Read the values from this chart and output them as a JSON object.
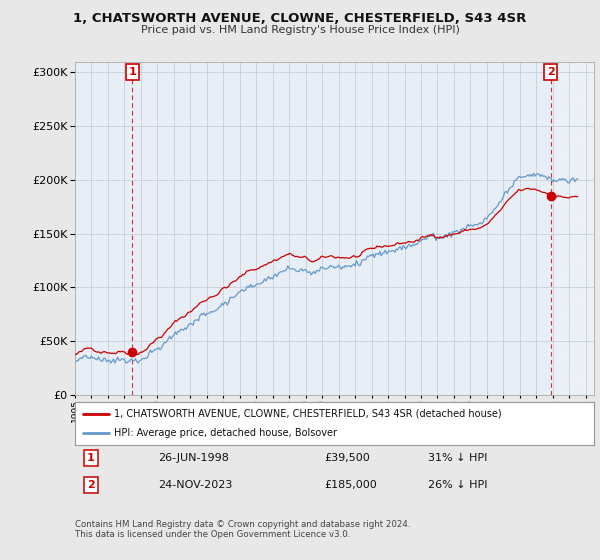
{
  "title1": "1, CHATSWORTH AVENUE, CLOWNE, CHESTERFIELD, S43 4SR",
  "title2": "Price paid vs. HM Land Registry's House Price Index (HPI)",
  "legend_line1": "1, CHATSWORTH AVENUE, CLOWNE, CHESTERFIELD, S43 4SR (detached house)",
  "legend_line2": "HPI: Average price, detached house, Bolsover",
  "point1_date": "26-JUN-1998",
  "point1_price": "£39,500",
  "point1_hpi": "31% ↓ HPI",
  "point2_date": "24-NOV-2023",
  "point2_price": "£185,000",
  "point2_hpi": "26% ↓ HPI",
  "footer": "Contains HM Land Registry data © Crown copyright and database right 2024.\nThis data is licensed under the Open Government Licence v3.0.",
  "red_color": "#cc0000",
  "blue_color": "#6699cc",
  "plot_bg_color": "#e8eef5",
  "background_color": "#e8e8e8",
  "ylim": [
    0,
    310000
  ],
  "xmin": 1995.0,
  "xmax": 2026.5,
  "t1": 1998.47,
  "t2": 2023.87,
  "price1": 39500,
  "price2": 185000
}
